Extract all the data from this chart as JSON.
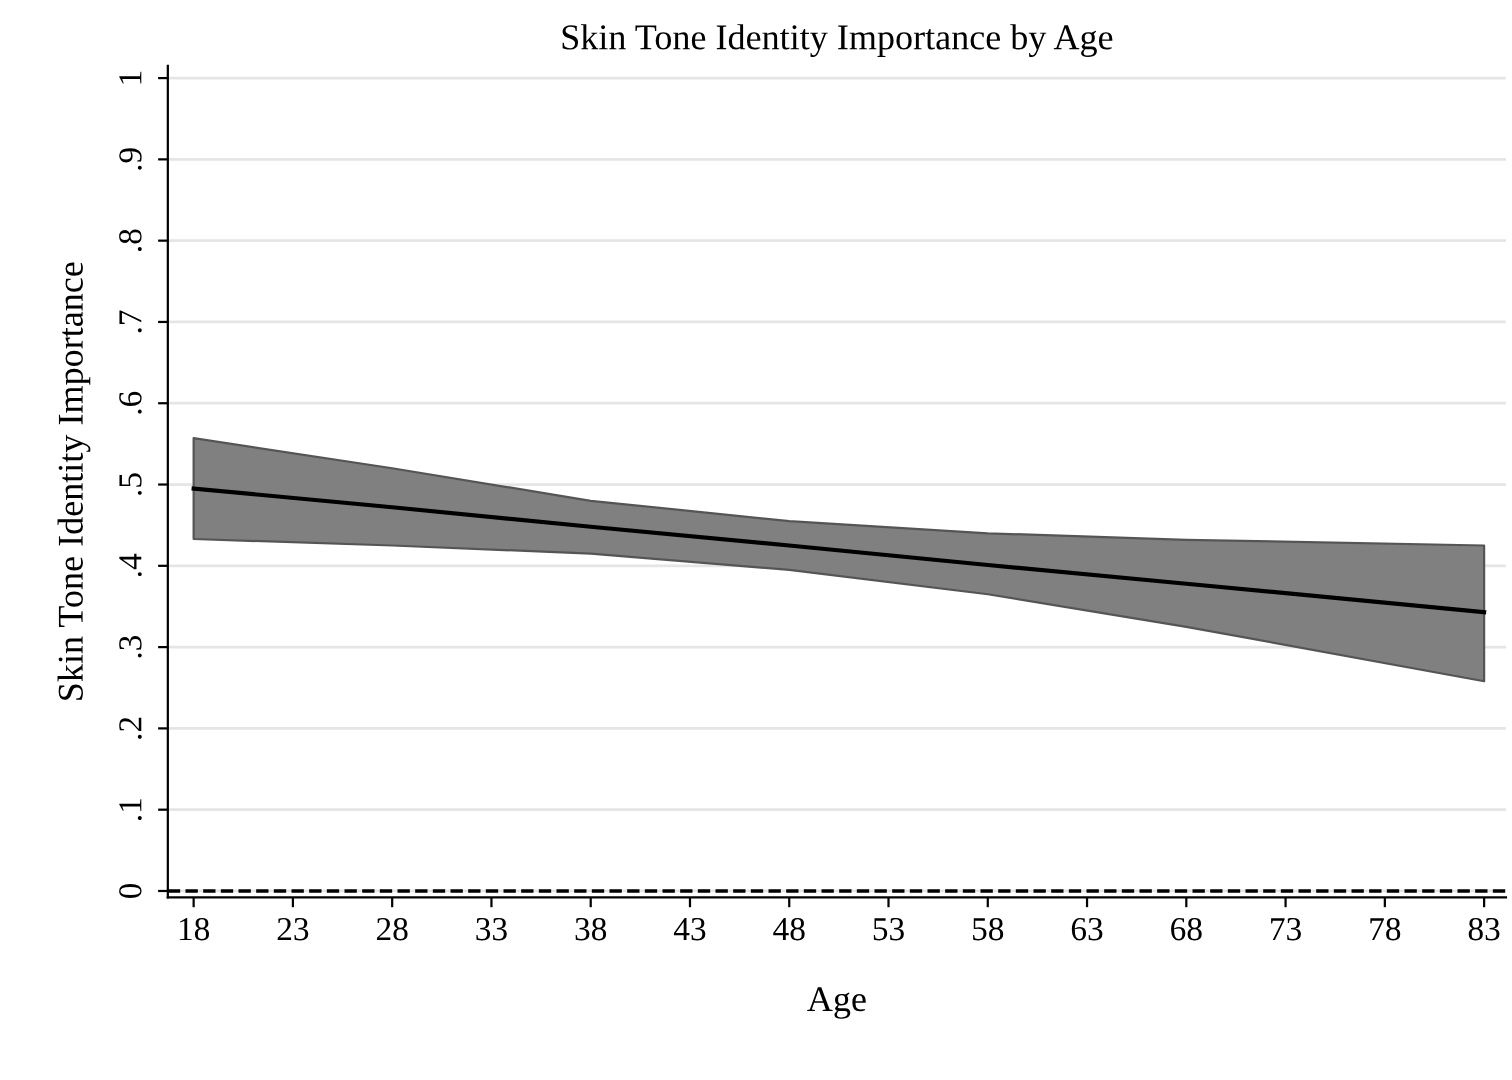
{
  "chart_data": {
    "type": "line",
    "title": "Skin Tone Identity Importance by Age",
    "xlabel": "Age",
    "ylabel": "Skin Tone Identity Importance",
    "x": [
      18,
      28,
      38,
      48,
      58,
      68,
      83
    ],
    "series": [
      {
        "color": "#000000",
        "values": [
          0.495,
          0.472,
          0.448,
          0.425,
          0.401,
          0.378,
          0.343
        ],
        "lower": [
          0.433,
          0.425,
          0.415,
          0.395,
          0.365,
          0.325,
          0.258
        ],
        "upper": [
          0.557,
          0.52,
          0.48,
          0.455,
          0.44,
          0.432,
          0.425
        ]
      }
    ],
    "xlim": [
      16.7,
      84.1
    ],
    "ylim": [
      -0.008,
      1.015
    ],
    "xticks": [
      18,
      23,
      28,
      33,
      38,
      43,
      48,
      53,
      58,
      63,
      68,
      73,
      78,
      83
    ],
    "yticks": [
      0,
      {
        "value": 0.1,
        "label": ".1"
      },
      {
        "value": 0.2,
        "label": ".2"
      },
      {
        "value": 0.3,
        "label": ".3"
      },
      {
        "value": 0.4,
        "label": ".4"
      },
      {
        "value": 0.5,
        "label": ".5"
      },
      {
        "value": 0.6,
        "label": ".6"
      },
      {
        "value": 0.7,
        "label": ".7"
      },
      {
        "value": 0.8,
        "label": ".8"
      },
      {
        "value": 0.9,
        "label": ".9"
      },
      1
    ],
    "ref_lines": [
      {
        "axis": "y",
        "value": 0,
        "color": "#000000",
        "line_style": "dashed"
      }
    ],
    "grid": "y",
    "legend": false,
    "marker": "none",
    "line_style": "solid"
  }
}
